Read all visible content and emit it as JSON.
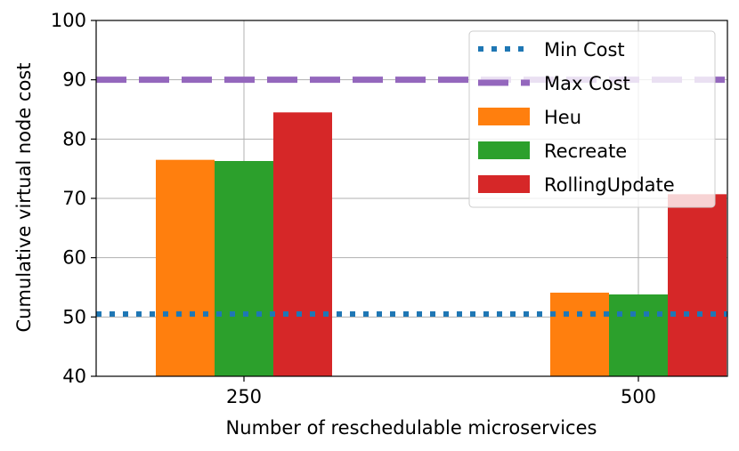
{
  "chart_data": {
    "type": "bar",
    "title": "",
    "xlabel": "Number of reschedulable microservices",
    "ylabel": "Cumulative virtual node cost",
    "categories": [
      "250",
      "500"
    ],
    "ylim": [
      40,
      100
    ],
    "yticks": [
      40,
      50,
      60,
      70,
      80,
      90,
      100
    ],
    "grid": true,
    "legend_position": "top-right",
    "series": [
      {
        "name": "Heu",
        "color": "#ff7f0e",
        "values": [
          76.5,
          54.1
        ]
      },
      {
        "name": "Recreate",
        "color": "#2ca02c",
        "values": [
          76.3,
          53.8
        ]
      },
      {
        "name": "RollingUpdate",
        "color": "#d62728",
        "values": [
          84.5,
          70.7
        ]
      }
    ],
    "reference_lines": [
      {
        "name": "Min Cost",
        "value": 50.5,
        "color": "#1f77b4",
        "style": "dotted"
      },
      {
        "name": "Max Cost",
        "value": 90.0,
        "color": "#9467bd",
        "style": "dashed"
      }
    ]
  }
}
